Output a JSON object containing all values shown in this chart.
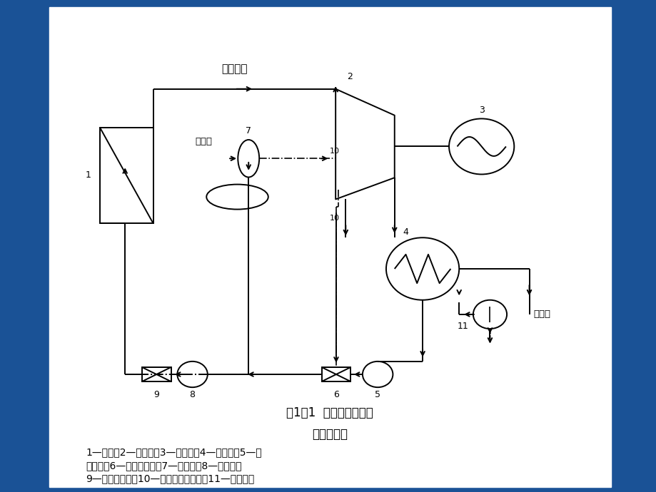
{
  "bg_color": "#1a5296",
  "title_line1": "图1－1  火力发电厂生产",
  "title_line2": "过程示意图",
  "caption_line1": "1—锅炉；2—汽轮机；3—发电机；4—凝汽器；5—凝",
  "caption_line2": "结水泵；6—低压加热器；7—除氧器；8—给水泵；",
  "caption_line3": "9—高压加热器；10—汽轮机抚汽管道；11—循环水泵",
  "label_superheated": "过热蕌汽",
  "label_cooling": "冷却水",
  "label_makeup": "补给水"
}
